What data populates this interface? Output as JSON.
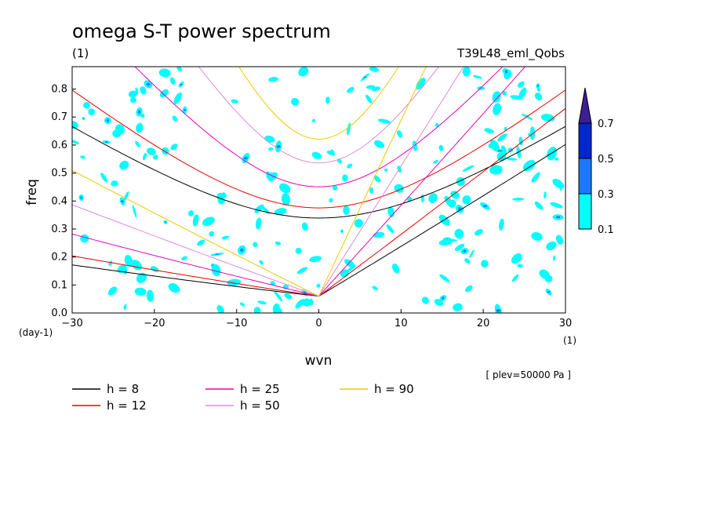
{
  "chart_data": {
    "type": "contour",
    "title": "omega S-T power spectrum",
    "subtitle": "(1)",
    "experiment": "T39L48_eml_Qobs",
    "xlabel": "wvn",
    "ylabel": "freq",
    "x_unit": "(1)",
    "y_unit": "(day-1)",
    "xlim": [
      -30,
      30
    ],
    "ylim": [
      0,
      0.88
    ],
    "xticks": [
      "−30",
      "−20",
      "−10",
      "0",
      "10",
      "20",
      "30"
    ],
    "yticks": [
      "0.0",
      "0.1",
      "0.2",
      "0.3",
      "0.4",
      "0.5",
      "0.6",
      "0.7",
      "0.8"
    ],
    "level_note": "[ plev=50000 Pa ]",
    "colorbar": {
      "levels": [
        "0.1",
        "0.3",
        "0.5",
        "0.7"
      ],
      "colors": [
        "#00ffff",
        "#1e78ff",
        "#0028c8",
        "#3c1e96"
      ]
    },
    "dispersion_curves": [
      {
        "label": "h =  8",
        "h": 8,
        "color": "#000000"
      },
      {
        "label": "h = 12",
        "h": 12,
        "color": "#e60000"
      },
      {
        "label": "h = 25",
        "h": 25,
        "color": "#e600b4"
      },
      {
        "label": "h = 50",
        "h": 50,
        "color": "#dc8cdc"
      },
      {
        "label": "h = 90",
        "h": 90,
        "color": "#f0c800"
      }
    ]
  }
}
